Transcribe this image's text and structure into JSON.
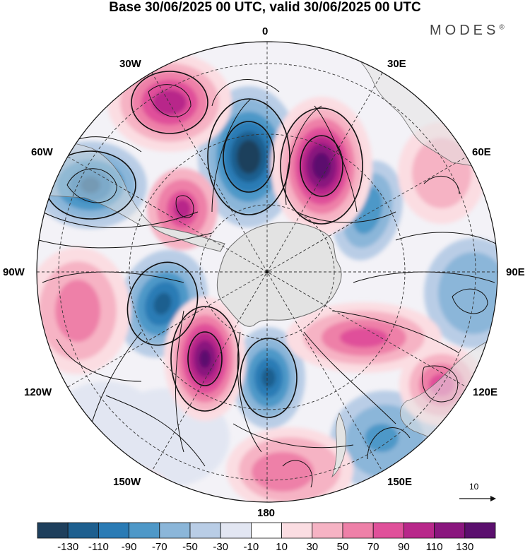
{
  "header": {
    "title": "Base 30/06/2025 00 UTC, valid 30/06/2025 00 UTC",
    "brand": "MODES",
    "brand_mark": "®"
  },
  "longitude_labels": [
    "0",
    "30E",
    "60E",
    "90E",
    "120E",
    "150E",
    "180",
    "150W",
    "120W",
    "90W",
    "60W",
    "30W"
  ],
  "colorbar": {
    "ticks": [
      "-130",
      "-110",
      "-90",
      "-70",
      "-50",
      "-30",
      "-10",
      "10",
      "30",
      "50",
      "70",
      "90",
      "110",
      "130"
    ],
    "colors": [
      "#1e3f5c",
      "#1d5f8f",
      "#2a7bb5",
      "#4e98c8",
      "#8bb6d9",
      "#b9cde6",
      "#e2e6f2",
      "#ffffff",
      "#fbdde2",
      "#f6b3c4",
      "#ee80a8",
      "#e0509a",
      "#b8278a",
      "#8a167e",
      "#5b0f6e"
    ]
  },
  "vector_reference": {
    "label": "10"
  },
  "colors": {
    "land": "#e3e3e3",
    "coast": "#6b6b6b",
    "grid": "#333333",
    "streamline": "#111111"
  }
}
